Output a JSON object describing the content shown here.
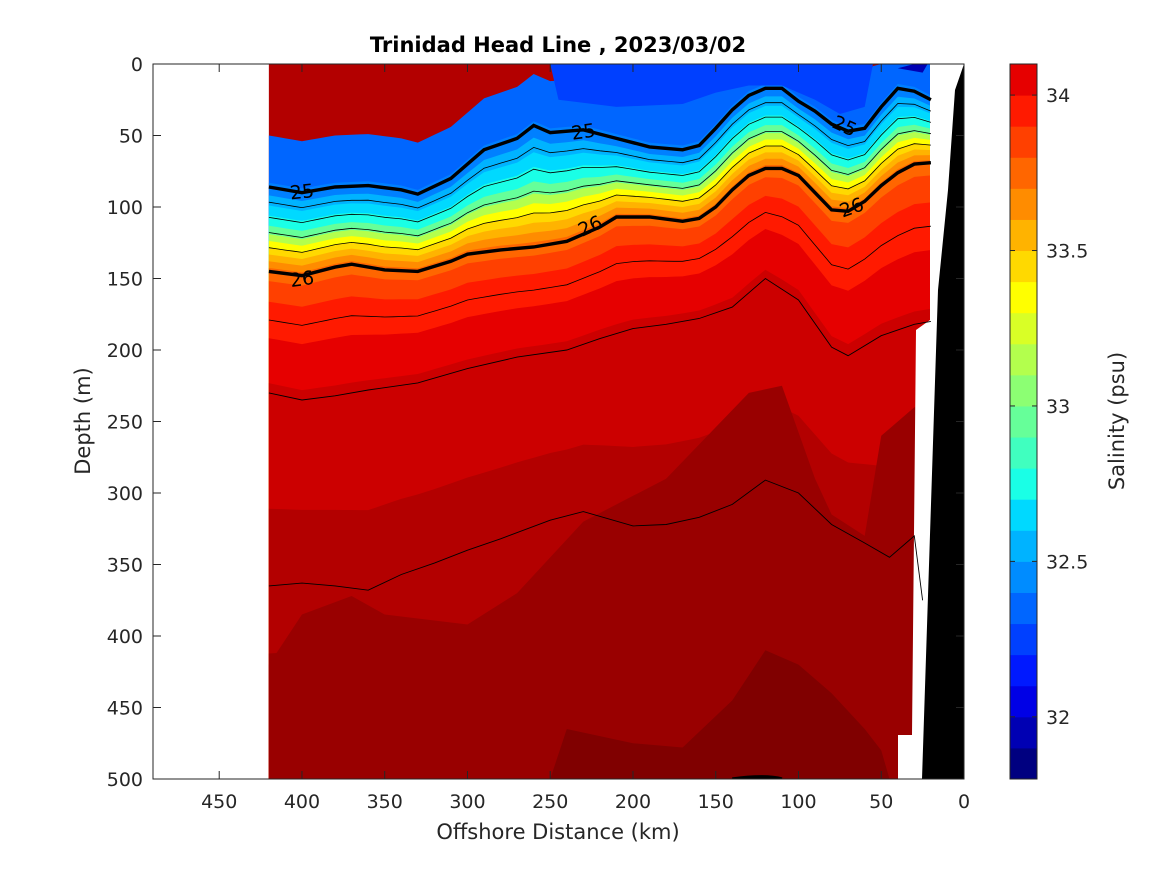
{
  "chart_data": {
    "type": "contour-section",
    "title": "Trinidad Head Line , 2023/03/02",
    "xlabel": "Offshore Distance (km)",
    "ylabel": "Depth (m)",
    "xlim": [
      490,
      0
    ],
    "ylim": [
      0,
      500
    ],
    "x_reversed": true,
    "y_reversed": true,
    "x_ticks": [
      "450",
      "400",
      "350",
      "300",
      "250",
      "200",
      "150",
      "100",
      "50",
      "0"
    ],
    "y_ticks": [
      "0",
      "50",
      "100",
      "150",
      "200",
      "250",
      "300",
      "350",
      "400",
      "450",
      "500"
    ],
    "x_tick_values": [
      450,
      400,
      350,
      300,
      250,
      200,
      150,
      100,
      50,
      0
    ],
    "y_tick_values": [
      0,
      50,
      100,
      150,
      200,
      250,
      300,
      350,
      400,
      450,
      500
    ],
    "colorbar": {
      "label": "Salinity (psu)",
      "ticks": [
        "32",
        "32.5",
        "33",
        "33.5",
        "34"
      ],
      "tick_values": [
        32,
        32.5,
        33,
        33.5,
        34
      ],
      "range": [
        31.8,
        34.1
      ],
      "levels_step": 0.1,
      "colormap": "jet",
      "colors": [
        "#000080",
        "#0000b3",
        "#0000e6",
        "#0019ff",
        "#0040ff",
        "#0066ff",
        "#008cff",
        "#00b3ff",
        "#00d9ff",
        "#1affe6",
        "#40ffbf",
        "#66ff99",
        "#8cff73",
        "#b3ff4d",
        "#d9ff26",
        "#ffff00",
        "#ffd900",
        "#ffb300",
        "#ff8c00",
        "#ff6600",
        "#ff4000",
        "#ff1a00",
        "#e60000",
        "#cc0000",
        "#b30000",
        "#990000",
        "#800000"
      ]
    },
    "data_extent_km": [
      420,
      20
    ],
    "density_contours": [
      {
        "label": "25",
        "bold": true,
        "points": [
          [
            420,
            86
          ],
          [
            400,
            90
          ],
          [
            380,
            86
          ],
          [
            360,
            85
          ],
          [
            340,
            88
          ],
          [
            330,
            91
          ],
          [
            310,
            80
          ],
          [
            300,
            70
          ],
          [
            290,
            60
          ],
          [
            270,
            52
          ],
          [
            260,
            43
          ],
          [
            250,
            48
          ],
          [
            230,
            46
          ],
          [
            210,
            52
          ],
          [
            190,
            58
          ],
          [
            170,
            60
          ],
          [
            160,
            57
          ],
          [
            150,
            45
          ],
          [
            140,
            32
          ],
          [
            130,
            22
          ],
          [
            120,
            17
          ],
          [
            110,
            17
          ],
          [
            100,
            26
          ],
          [
            90,
            33
          ],
          [
            80,
            42
          ],
          [
            70,
            47
          ],
          [
            60,
            45
          ],
          [
            50,
            30
          ],
          [
            40,
            17
          ],
          [
            30,
            19
          ],
          [
            20,
            25
          ]
        ]
      },
      {
        "label": "26",
        "bold": true,
        "points": [
          [
            420,
            145
          ],
          [
            400,
            148
          ],
          [
            380,
            142
          ],
          [
            370,
            140
          ],
          [
            350,
            144
          ],
          [
            330,
            145
          ],
          [
            310,
            138
          ],
          [
            300,
            133
          ],
          [
            280,
            130
          ],
          [
            260,
            128
          ],
          [
            240,
            124
          ],
          [
            220,
            114
          ],
          [
            210,
            107
          ],
          [
            190,
            107
          ],
          [
            170,
            110
          ],
          [
            160,
            108
          ],
          [
            150,
            100
          ],
          [
            140,
            88
          ],
          [
            130,
            78
          ],
          [
            120,
            73
          ],
          [
            110,
            73
          ],
          [
            100,
            78
          ],
          [
            90,
            90
          ],
          [
            80,
            102
          ],
          [
            70,
            103
          ],
          [
            60,
            96
          ],
          [
            50,
            85
          ],
          [
            40,
            76
          ],
          [
            30,
            70
          ],
          [
            20,
            69
          ]
        ]
      },
      {
        "label": "",
        "bold": false,
        "points": [
          [
            420,
            230
          ],
          [
            400,
            235
          ],
          [
            380,
            232
          ],
          [
            360,
            228
          ],
          [
            330,
            223
          ],
          [
            300,
            213
          ],
          [
            270,
            205
          ],
          [
            240,
            200
          ],
          [
            220,
            192
          ],
          [
            200,
            185
          ],
          [
            180,
            182
          ],
          [
            160,
            178
          ],
          [
            140,
            170
          ],
          [
            120,
            150
          ],
          [
            100,
            165
          ],
          [
            80,
            198
          ],
          [
            70,
            204
          ],
          [
            50,
            190
          ],
          [
            30,
            182
          ],
          [
            20,
            180
          ]
        ]
      },
      {
        "label": "",
        "bold": false,
        "points": [
          [
            420,
            365
          ],
          [
            400,
            363
          ],
          [
            380,
            365
          ],
          [
            360,
            368
          ],
          [
            340,
            357
          ],
          [
            320,
            349
          ],
          [
            300,
            340
          ],
          [
            280,
            332
          ],
          [
            250,
            319
          ],
          [
            230,
            313
          ],
          [
            200,
            323
          ],
          [
            180,
            322
          ],
          [
            160,
            317
          ],
          [
            140,
            308
          ],
          [
            120,
            291
          ],
          [
            100,
            300
          ],
          [
            80,
            322
          ],
          [
            60,
            335
          ],
          [
            45,
            345
          ],
          [
            30,
            330
          ],
          [
            25,
            375
          ]
        ]
      }
    ],
    "thin_contours_note_values": []
  }
}
